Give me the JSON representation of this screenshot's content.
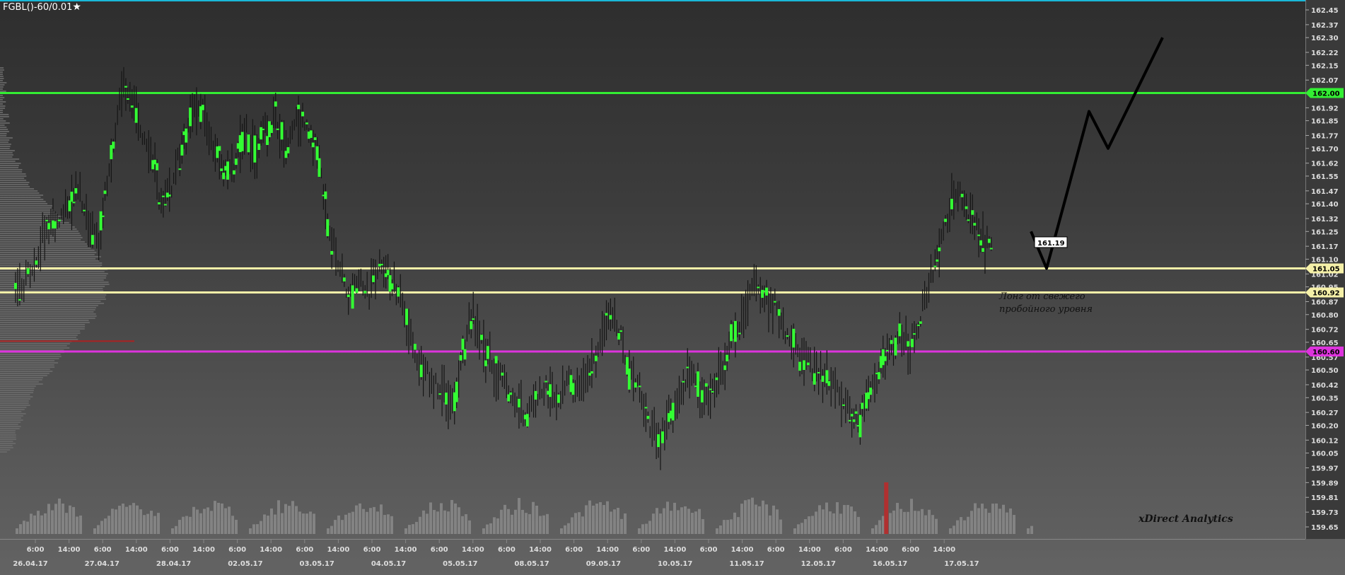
{
  "title": "FGBL()-60/0.01",
  "title_star": "★",
  "note": {
    "line1": "Лонг от свежего",
    "line2": "пробойного уровня"
  },
  "brand": "xDirect Analytics",
  "current_price_label": "161.19",
  "colors": {
    "green": "#33ee33",
    "yellow": "#f5f0a8",
    "magenta": "#dd33dd",
    "up": "#33ff33",
    "down": "#151515",
    "forecast": "#000000"
  },
  "chart_data": {
    "type": "candlestick",
    "instrument": "FGBL()-60/0.01",
    "ylim": [
      159.65,
      162.45
    ],
    "y_ticks": [
      "162.45",
      "162.37",
      "162.30",
      "162.22",
      "162.15",
      "162.07",
      "162.00",
      "161.92",
      "161.85",
      "161.77",
      "161.70",
      "161.62",
      "161.55",
      "161.47",
      "161.40",
      "161.32",
      "161.25",
      "161.17",
      "161.10",
      "161.02",
      "160.95",
      "160.87",
      "160.80",
      "160.72",
      "160.65",
      "160.57",
      "160.50",
      "160.42",
      "160.35",
      "160.27",
      "160.20",
      "160.12",
      "160.05",
      "159.97",
      "159.89",
      "159.81",
      "159.73",
      "159.65"
    ],
    "levels": [
      {
        "price": 162.0,
        "label": "162.00",
        "color": "#33ee33"
      },
      {
        "price": 161.05,
        "label": "161.05",
        "color": "#f5f0a8"
      },
      {
        "price": 160.92,
        "label": "160.92",
        "color": "#f5f0a8"
      },
      {
        "price": 160.6,
        "label": "160.60",
        "color": "#dd33dd"
      }
    ],
    "x_time_labels": [
      "6:00",
      "14:00",
      "6:00",
      "14:00",
      "6:00",
      "14:00",
      "6:00",
      "14:00",
      "6:00",
      "14:00",
      "6:00",
      "14:00",
      "6:00",
      "14:00",
      "6:00",
      "14:00",
      "6:00",
      "14:00",
      "6:00",
      "14:00",
      "6:00",
      "14:00",
      "6:00",
      "14:00",
      "6:00",
      "14:00",
      "6:00",
      "14:00"
    ],
    "x_dates": [
      "26.04.17",
      "27.04.17",
      "28.04.17",
      "02.05.17",
      "03.05.17",
      "04.05.17",
      "05.05.17",
      "08.05.17",
      "09.05.17",
      "10.05.17",
      "11.05.17",
      "12.05.17",
      "16.05.17",
      "17.05.17"
    ],
    "close_path": [
      160.9,
      161.0,
      161.1,
      161.3,
      161.3,
      161.4,
      161.5,
      161.3,
      161.2,
      161.6,
      162.0,
      162.0,
      161.8,
      161.7,
      161.4,
      161.5,
      161.7,
      161.9,
      161.9,
      161.7,
      161.6,
      161.6,
      161.8,
      161.7,
      161.8,
      161.85,
      161.7,
      161.9,
      161.8,
      161.7,
      161.3,
      161.1,
      160.9,
      161.0,
      160.9,
      161.1,
      161.0,
      160.9,
      160.7,
      160.5,
      160.45,
      160.4,
      160.3,
      160.6,
      160.8,
      160.6,
      160.5,
      160.45,
      160.3,
      160.25,
      160.35,
      160.4,
      160.3,
      160.45,
      160.4,
      160.5,
      160.6,
      160.8,
      160.7,
      160.5,
      160.4,
      160.2,
      160.1,
      160.25,
      160.4,
      160.5,
      160.35,
      160.4,
      160.5,
      160.7,
      160.8,
      160.95,
      160.9,
      160.85,
      160.7,
      160.6,
      160.55,
      160.5,
      160.45,
      160.4,
      160.3,
      160.2,
      160.35,
      160.5,
      160.6,
      160.7,
      160.6,
      160.8,
      161.0,
      161.2,
      161.4,
      161.45,
      161.3,
      161.19
    ],
    "forecast_path": [
      [
        161.25,
        161.05
      ],
      [
        161.9,
        161.7
      ],
      [
        162.3
      ]
    ],
    "volume_spike_index": 82
  }
}
